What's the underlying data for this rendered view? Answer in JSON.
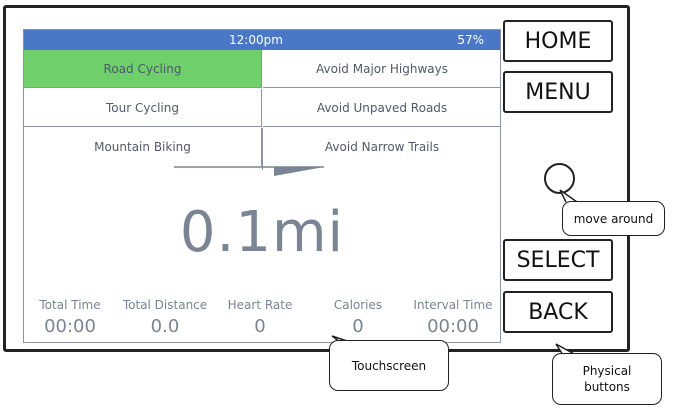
{
  "statusbar": {
    "time": "12:00pm",
    "battery": "57%"
  },
  "options": {
    "activities": [
      "Road Cycling",
      "Tour Cycling",
      "Mountain Biking"
    ],
    "avoid": [
      "Avoid Major Highways",
      "Avoid Unpaved Roads",
      "Avoid Narrow Trails"
    ],
    "selected": "Road Cycling"
  },
  "distance": "0.1mi",
  "stats": [
    {
      "label": "Total Time",
      "value": "00:00"
    },
    {
      "label": "Total Distance",
      "value": "0.0"
    },
    {
      "label": "Heart Rate",
      "value": "0"
    },
    {
      "label": "Calories",
      "value": "0"
    },
    {
      "label": "Interval Time",
      "value": "00:00"
    }
  ],
  "buttons": {
    "home": "HOME",
    "menu": "MENU",
    "select": "SELECT",
    "back": "BACK"
  },
  "annotations": {
    "knob": "move around",
    "screen": "Touchscreen",
    "buttons_line1": "Physical",
    "buttons_line2": "buttons"
  },
  "colors": {
    "statusbar": "#4a78c6",
    "selected": "#6fd06b",
    "text": "#7a8494"
  }
}
